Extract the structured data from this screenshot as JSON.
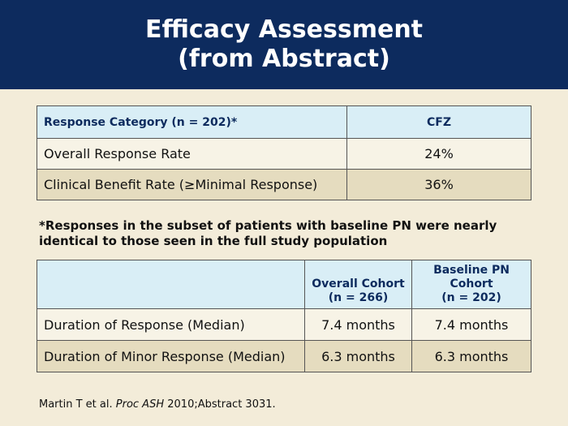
{
  "header": {
    "title_line1": "Efficacy Assessment",
    "title_line2": "(from Abstract)"
  },
  "table1": {
    "headers": [
      "Response Category (n = 202)*",
      "CFZ"
    ],
    "rows": [
      [
        "Overall Response Rate",
        "24%"
      ],
      [
        "Clinical Benefit Rate (≥Minimal Response)",
        "36%"
      ]
    ]
  },
  "note": "*Responses in the subset of patients with baseline PN were nearly identical to those seen in the full study population",
  "table2": {
    "headers": [
      "",
      "Overall Cohort (n = 266)",
      "Baseline PN Cohort (n = 202)"
    ],
    "header2_line1": "Overall Cohort",
    "header2_line2": "(n = 266)",
    "header3_line1": "Baseline PN",
    "header3_line2": "Cohort",
    "header3_line3": "(n = 202)",
    "rows": [
      [
        "Duration of Response (Median)",
        "7.4 months",
        "7.4 months"
      ],
      [
        "Duration of Minor Response (Median)",
        "6.3 months",
        "6.3 months"
      ]
    ]
  },
  "citation": {
    "authors": "Martin T et al.",
    "journal": "Proc ASH",
    "rest": "2010;Abstract 3031."
  }
}
